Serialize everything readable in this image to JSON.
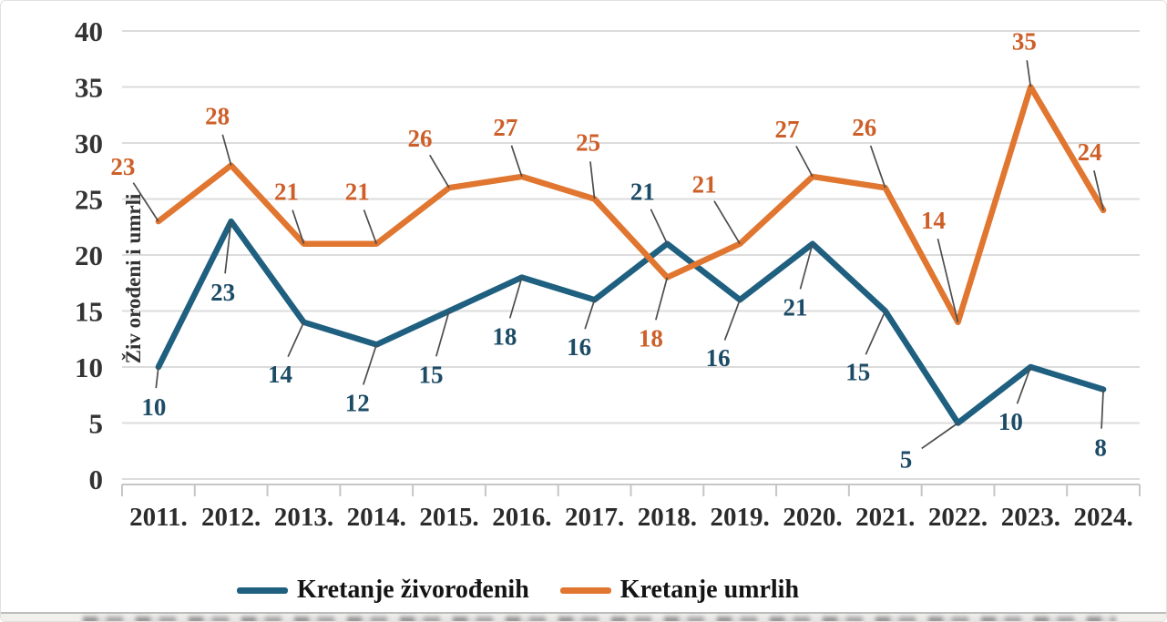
{
  "chart_data": {
    "type": "line",
    "title": "",
    "xlabel": "",
    "ylabel": "Živ orođeni i umrli",
    "categories": [
      "2011.",
      "2012.",
      "2013.",
      "2014.",
      "2015.",
      "2016.",
      "2017.",
      "2018.",
      "2019.",
      "2020.",
      "2021.",
      "2022.",
      "2023.",
      "2024."
    ],
    "series": [
      {
        "name": "Kretanje živorođenih",
        "color": "#1F5F7F",
        "label_color": "#1C4B66",
        "values": [
          10,
          23,
          14,
          12,
          15,
          18,
          16,
          21,
          16,
          21,
          15,
          5,
          10,
          8
        ],
        "label_offsets": [
          [
            -5,
            44
          ],
          [
            -9,
            78
          ],
          [
            -26,
            57
          ],
          [
            -21,
            64
          ],
          [
            -20,
            70
          ],
          [
            -19,
            65
          ],
          [
            -17,
            52
          ],
          [
            -27,
            -57
          ],
          [
            -24,
            64
          ],
          [
            -19,
            70
          ],
          [
            -30,
            67
          ],
          [
            -57,
            40
          ],
          [
            -22,
            60
          ],
          [
            -3,
            64
          ]
        ]
      },
      {
        "name": "Kretanje umrlih",
        "color": "#E0762F",
        "label_color": "#CE5F28",
        "values": [
          23,
          28,
          21,
          21,
          26,
          27,
          25,
          18,
          21,
          27,
          26,
          14,
          35,
          24
        ],
        "label_offsets": [
          [
            -39,
            -60
          ],
          [
            -15,
            -54
          ],
          [
            -19,
            -57
          ],
          [
            -21,
            -57
          ],
          [
            -32,
            -54
          ],
          [
            -18,
            -54
          ],
          [
            -7,
            -62
          ],
          [
            -18,
            67
          ],
          [
            -39,
            -65
          ],
          [
            -28,
            -52
          ],
          [
            -23,
            -66
          ],
          [
            -27,
            -112
          ],
          [
            -7,
            -50
          ],
          [
            -15,
            -64
          ]
        ]
      }
    ],
    "ylim": [
      0,
      40
    ],
    "y_ticks": [
      0,
      5,
      10,
      15,
      20,
      25,
      30,
      35,
      40
    ],
    "grid": true,
    "legend_position": "bottom",
    "colors": {
      "gridline": "#DCDCDC",
      "axis": "#C6C6C6",
      "leader": "#4d4d4d"
    }
  }
}
